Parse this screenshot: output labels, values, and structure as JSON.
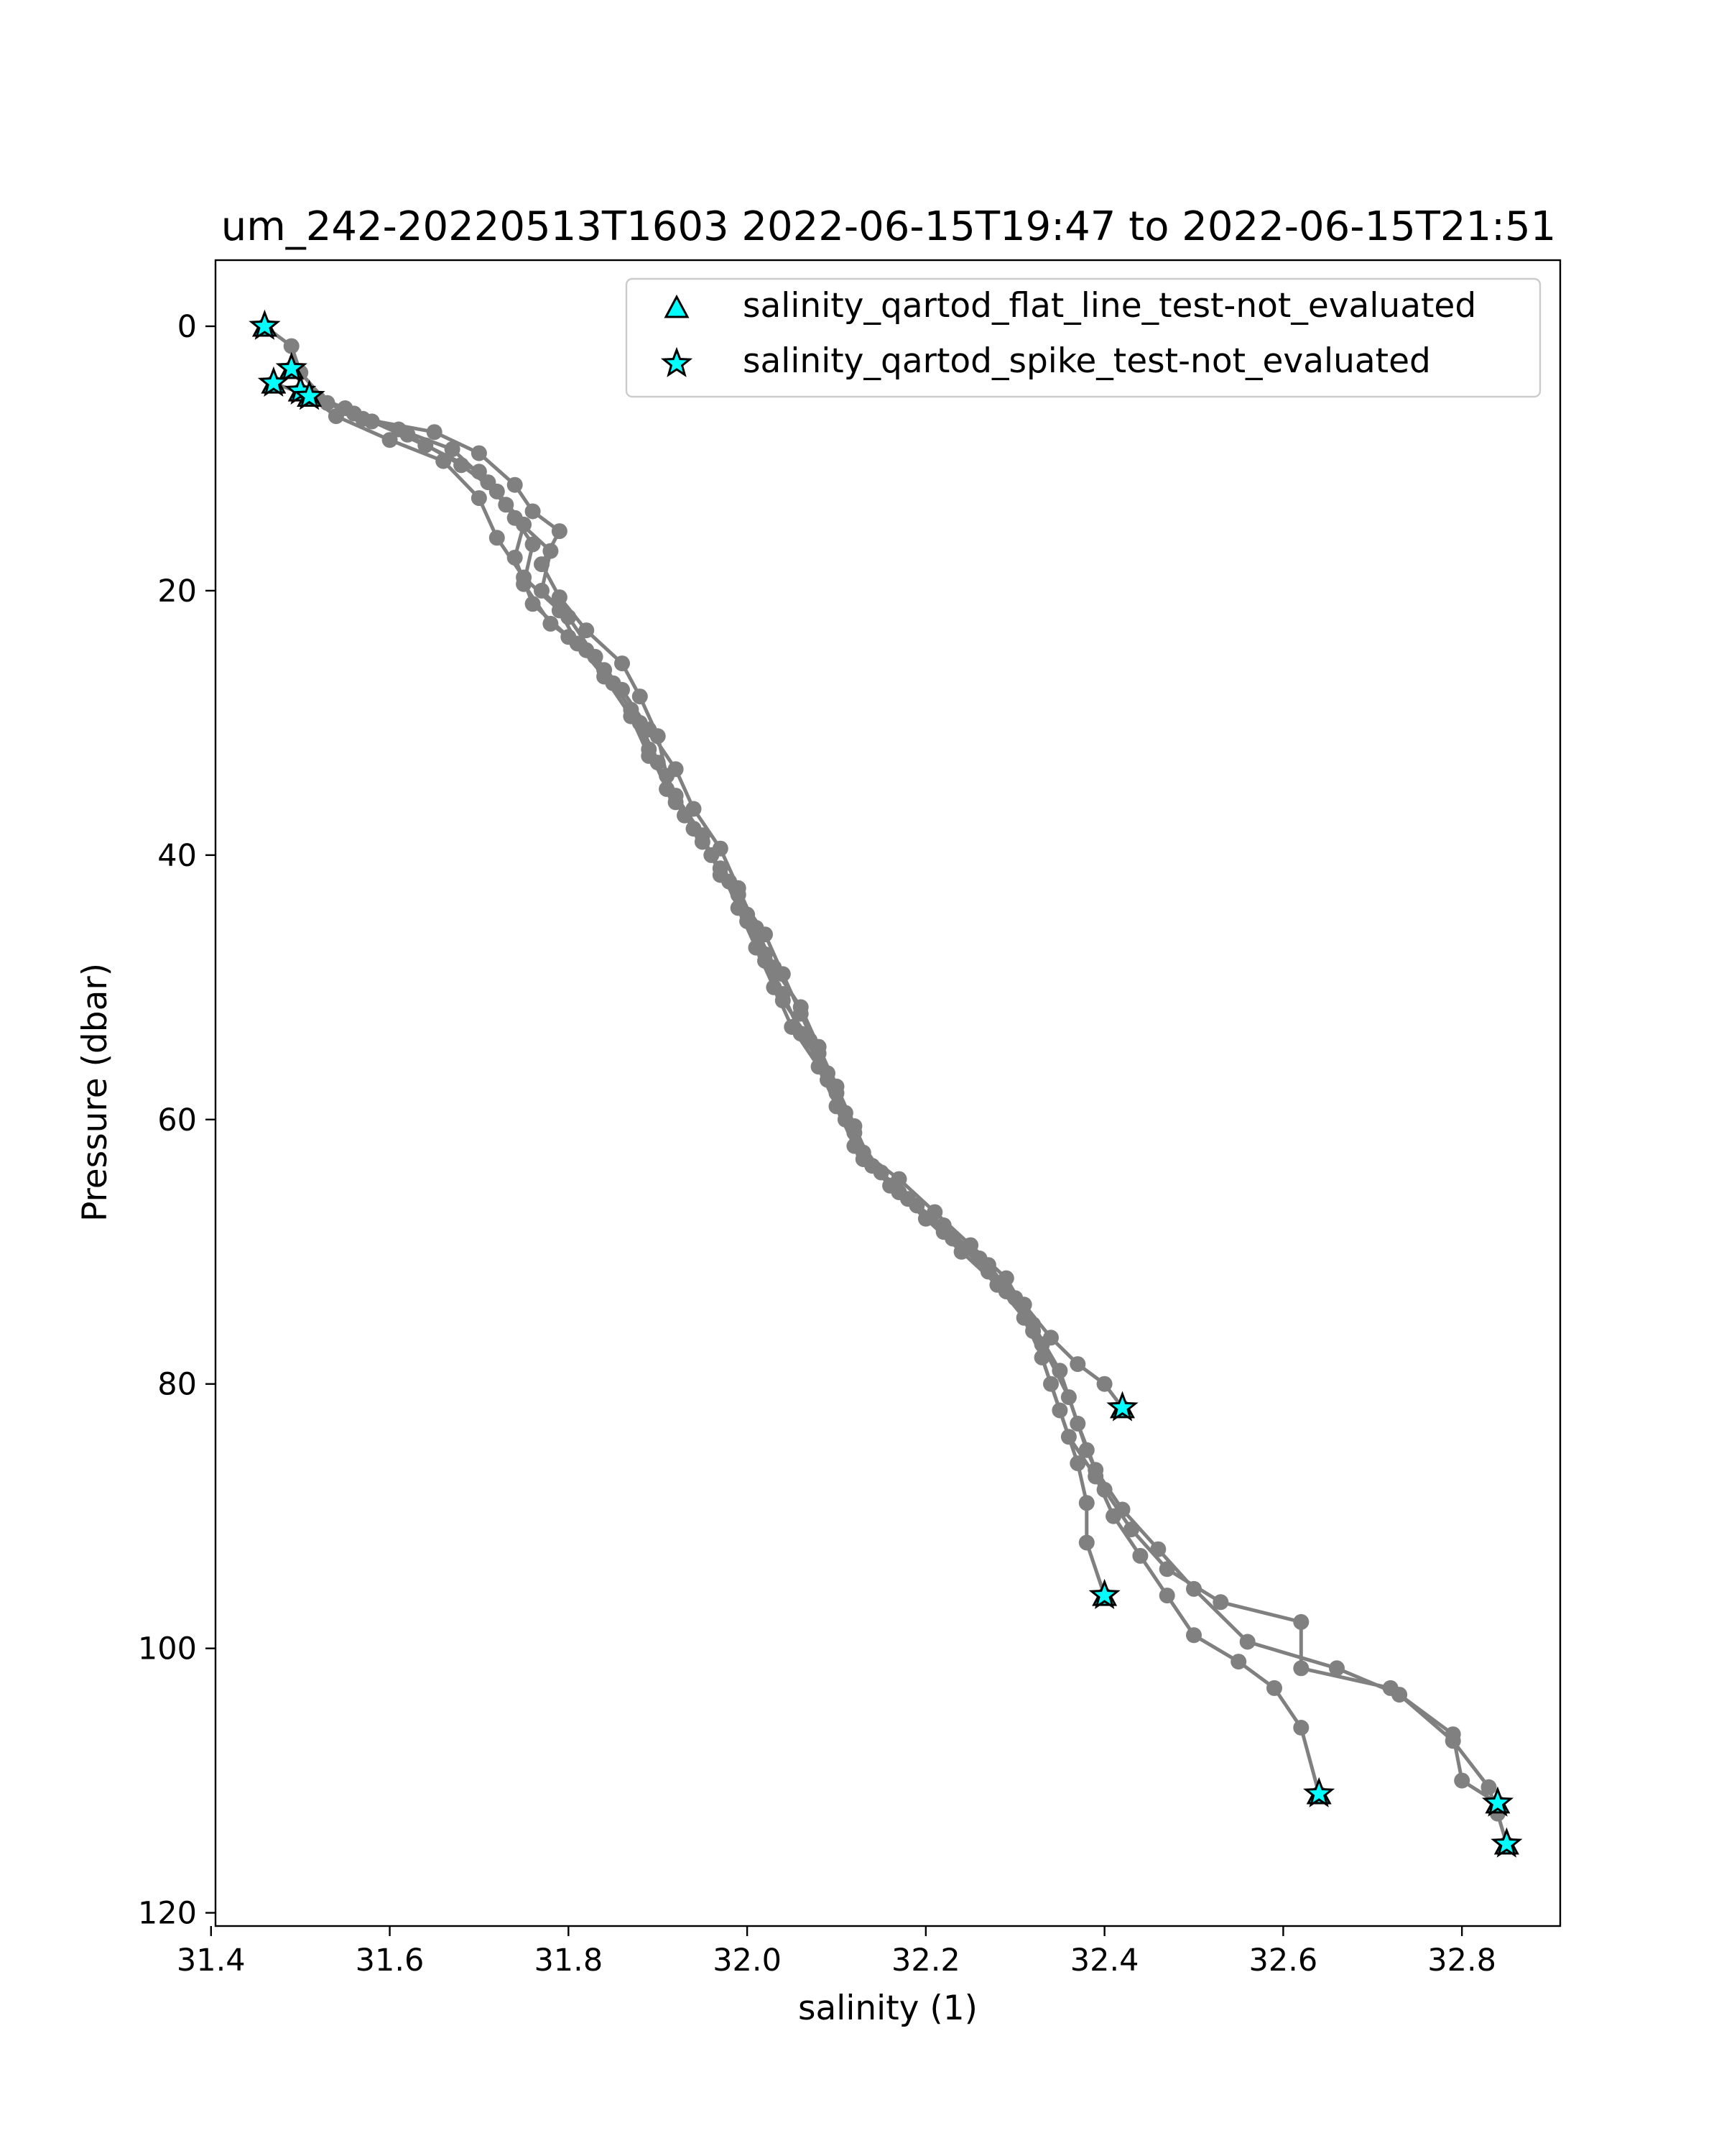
{
  "chart_data": {
    "type": "line",
    "title": "um_242-20220513T1603 2022-06-15T19:47 to 2022-06-15T21:51",
    "xlabel": "salinity (1)",
    "ylabel": "Pressure (dbar)",
    "xlim": [
      31.405,
      32.91
    ],
    "ylim": [
      121,
      -5
    ],
    "y_inverted": true,
    "x_ticks": [
      31.4,
      31.6,
      31.8,
      32.0,
      32.2,
      32.4,
      32.6,
      32.8
    ],
    "x_tick_labels": [
      "31.4",
      "31.6",
      "31.8",
      "32.0",
      "32.2",
      "32.4",
      "32.6",
      "32.8"
    ],
    "y_ticks": [
      0,
      20,
      40,
      60,
      80,
      100,
      120
    ],
    "y_tick_labels": [
      "0",
      "20",
      "40",
      "60",
      "80",
      "100",
      "120"
    ],
    "grid": false,
    "legend_position": "top-right",
    "colors": {
      "profile_line": "#808080",
      "marker_fill": "#00ffff",
      "marker_edge": "#000000"
    },
    "profiles": [
      {
        "points": [
          [
            31.46,
            0.0
          ],
          [
            31.49,
            1.5
          ],
          [
            31.5,
            3.5
          ],
          [
            31.53,
            5.8
          ],
          [
            31.57,
            7.0
          ],
          [
            31.65,
            8.0
          ],
          [
            31.7,
            9.6
          ],
          [
            31.74,
            12.0
          ],
          [
            31.76,
            14.0
          ],
          [
            31.79,
            15.5
          ],
          [
            31.77,
            18.0
          ],
          [
            31.79,
            20.5
          ],
          [
            31.82,
            23.0
          ],
          [
            31.86,
            25.5
          ],
          [
            31.88,
            28.0
          ],
          [
            31.9,
            31.0
          ],
          [
            31.91,
            34.0
          ],
          [
            31.93,
            37.0
          ],
          [
            31.96,
            40.0
          ],
          [
            31.99,
            43.0
          ],
          [
            32.02,
            46.0
          ],
          [
            32.04,
            49.0
          ],
          [
            32.06,
            52.0
          ],
          [
            32.08,
            55.0
          ],
          [
            32.1,
            58.0
          ],
          [
            32.12,
            61.0
          ],
          [
            32.15,
            64.0
          ],
          [
            32.19,
            66.5
          ],
          [
            32.23,
            69.0
          ],
          [
            32.27,
            71.5
          ],
          [
            32.31,
            74.0
          ],
          [
            32.34,
            76.5
          ],
          [
            32.37,
            78.5
          ],
          [
            32.4,
            80.0
          ],
          [
            32.42,
            81.8
          ]
        ]
      },
      {
        "points": [
          [
            31.49,
            3.2
          ],
          [
            31.51,
            5.2
          ],
          [
            31.56,
            6.6
          ],
          [
            31.62,
            8.2
          ],
          [
            31.68,
            10.5
          ],
          [
            31.72,
            12.5
          ],
          [
            31.75,
            15.0
          ],
          [
            31.74,
            17.5
          ],
          [
            31.76,
            21.0
          ],
          [
            31.8,
            23.5
          ],
          [
            31.84,
            26.0
          ],
          [
            31.87,
            29.0
          ],
          [
            31.89,
            32.0
          ],
          [
            31.91,
            35.0
          ],
          [
            31.94,
            38.0
          ],
          [
            31.97,
            41.0
          ],
          [
            31.99,
            44.0
          ],
          [
            32.01,
            47.0
          ],
          [
            32.03,
            50.0
          ],
          [
            32.05,
            53.0
          ],
          [
            32.08,
            56.0
          ],
          [
            32.1,
            59.0
          ],
          [
            32.12,
            62.0
          ],
          [
            32.16,
            65.0
          ],
          [
            32.2,
            67.5
          ],
          [
            32.24,
            70.0
          ],
          [
            32.28,
            72.5
          ],
          [
            32.31,
            75.0
          ],
          [
            32.33,
            78.0
          ],
          [
            32.35,
            82.0
          ],
          [
            32.37,
            86.0
          ],
          [
            32.38,
            89.0
          ],
          [
            32.38,
            92.0
          ],
          [
            32.4,
            96.0
          ]
        ]
      },
      {
        "points": [
          [
            31.47,
            4.3
          ],
          [
            31.52,
            5.5
          ],
          [
            31.58,
            7.2
          ],
          [
            31.64,
            9.0
          ],
          [
            31.7,
            11.0
          ],
          [
            31.73,
            13.5
          ],
          [
            31.76,
            16.5
          ],
          [
            31.75,
            19.5
          ],
          [
            31.78,
            22.5
          ],
          [
            31.82,
            24.5
          ],
          [
            31.85,
            27.0
          ],
          [
            31.88,
            30.0
          ],
          [
            31.9,
            33.0
          ],
          [
            31.92,
            36.0
          ],
          [
            31.95,
            39.0
          ],
          [
            31.98,
            42.0
          ],
          [
            32.0,
            45.0
          ],
          [
            32.02,
            48.0
          ],
          [
            32.04,
            51.0
          ],
          [
            32.07,
            54.0
          ],
          [
            32.09,
            57.0
          ],
          [
            32.11,
            60.0
          ],
          [
            32.13,
            63.0
          ],
          [
            32.17,
            65.5
          ],
          [
            32.22,
            68.0
          ],
          [
            32.26,
            70.5
          ],
          [
            32.29,
            73.0
          ],
          [
            32.32,
            76.0
          ],
          [
            32.34,
            80.0
          ],
          [
            32.36,
            84.0
          ],
          [
            32.39,
            87.0
          ],
          [
            32.41,
            90.0
          ],
          [
            32.44,
            93.0
          ],
          [
            32.47,
            96.0
          ],
          [
            32.5,
            99.0
          ],
          [
            32.55,
            101.0
          ],
          [
            32.59,
            103.0
          ],
          [
            32.62,
            106.0
          ],
          [
            32.64,
            111.0
          ]
        ]
      },
      {
        "points": [
          [
            31.5,
            4.9
          ],
          [
            31.55,
            6.2
          ],
          [
            31.61,
            7.8
          ],
          [
            31.67,
            9.3
          ],
          [
            31.71,
            11.8
          ],
          [
            31.74,
            14.5
          ],
          [
            31.78,
            17.0
          ],
          [
            31.77,
            20.0
          ],
          [
            31.8,
            22.0
          ],
          [
            31.83,
            25.0
          ],
          [
            31.86,
            27.5
          ],
          [
            31.89,
            30.5
          ],
          [
            31.92,
            33.5
          ],
          [
            31.94,
            36.5
          ],
          [
            31.97,
            39.5
          ],
          [
            31.99,
            42.5
          ],
          [
            32.01,
            45.5
          ],
          [
            32.03,
            48.5
          ],
          [
            32.06,
            51.5
          ],
          [
            32.08,
            54.5
          ],
          [
            32.1,
            57.5
          ],
          [
            32.12,
            60.5
          ],
          [
            32.14,
            63.5
          ],
          [
            32.18,
            66.0
          ],
          [
            32.22,
            68.5
          ],
          [
            32.27,
            71.0
          ],
          [
            32.3,
            73.5
          ],
          [
            32.33,
            77.0
          ],
          [
            32.36,
            81.0
          ],
          [
            32.38,
            85.0
          ],
          [
            32.4,
            88.0
          ],
          [
            32.43,
            91.0
          ],
          [
            32.47,
            94.0
          ],
          [
            32.53,
            96.5
          ],
          [
            32.62,
            98.0
          ],
          [
            32.62,
            101.5
          ],
          [
            32.72,
            103.0
          ],
          [
            32.79,
            106.5
          ],
          [
            32.8,
            110.0
          ],
          [
            32.84,
            111.7
          ]
        ]
      },
      {
        "points": [
          [
            31.51,
            5.3
          ],
          [
            31.54,
            6.8
          ],
          [
            31.6,
            8.6
          ],
          [
            31.66,
            10.2
          ],
          [
            31.7,
            13.0
          ],
          [
            31.72,
            16.0
          ],
          [
            31.75,
            19.0
          ],
          [
            31.79,
            21.5
          ],
          [
            31.81,
            24.0
          ],
          [
            31.84,
            26.5
          ],
          [
            31.87,
            29.5
          ],
          [
            31.89,
            32.5
          ],
          [
            31.92,
            35.5
          ],
          [
            31.95,
            38.5
          ],
          [
            31.97,
            41.5
          ],
          [
            32.0,
            44.5
          ],
          [
            32.02,
            47.5
          ],
          [
            32.04,
            50.5
          ],
          [
            32.06,
            53.5
          ],
          [
            32.09,
            56.5
          ],
          [
            32.11,
            59.5
          ],
          [
            32.13,
            62.5
          ],
          [
            32.17,
            64.5
          ],
          [
            32.21,
            67.0
          ],
          [
            32.25,
            69.5
          ],
          [
            32.29,
            72.0
          ],
          [
            32.32,
            75.5
          ],
          [
            32.35,
            79.0
          ],
          [
            32.37,
            83.0
          ],
          [
            32.39,
            86.5
          ],
          [
            32.42,
            89.5
          ],
          [
            32.46,
            92.5
          ],
          [
            32.5,
            95.5
          ],
          [
            32.56,
            99.5
          ],
          [
            32.66,
            101.5
          ],
          [
            32.73,
            103.5
          ],
          [
            32.79,
            107.0
          ],
          [
            32.83,
            110.5
          ],
          [
            32.84,
            112.5
          ],
          [
            32.85,
            114.8
          ]
        ]
      }
    ],
    "flagged": {
      "flat_line_not_evaluated": [
        [
          31.46,
          0.0
        ],
        [
          31.49,
          3.2
        ],
        [
          31.47,
          4.3
        ],
        [
          31.5,
          4.9
        ],
        [
          31.51,
          5.3
        ],
        [
          32.42,
          81.8
        ],
        [
          32.4,
          96.0
        ],
        [
          32.64,
          111.0
        ],
        [
          32.84,
          111.7
        ],
        [
          32.85,
          114.8
        ]
      ],
      "spike_not_evaluated": [
        [
          31.46,
          0.0
        ],
        [
          31.49,
          3.2
        ],
        [
          31.47,
          4.3
        ],
        [
          31.5,
          4.9
        ],
        [
          31.51,
          5.3
        ],
        [
          32.42,
          81.8
        ],
        [
          32.4,
          96.0
        ],
        [
          32.64,
          111.0
        ],
        [
          32.84,
          111.7
        ],
        [
          32.85,
          114.8
        ]
      ]
    },
    "legend": [
      {
        "marker": "triangle",
        "label": "salinity_qartod_flat_line_test-not_evaluated"
      },
      {
        "marker": "star",
        "label": "salinity_qartod_spike_test-not_evaluated"
      }
    ]
  }
}
